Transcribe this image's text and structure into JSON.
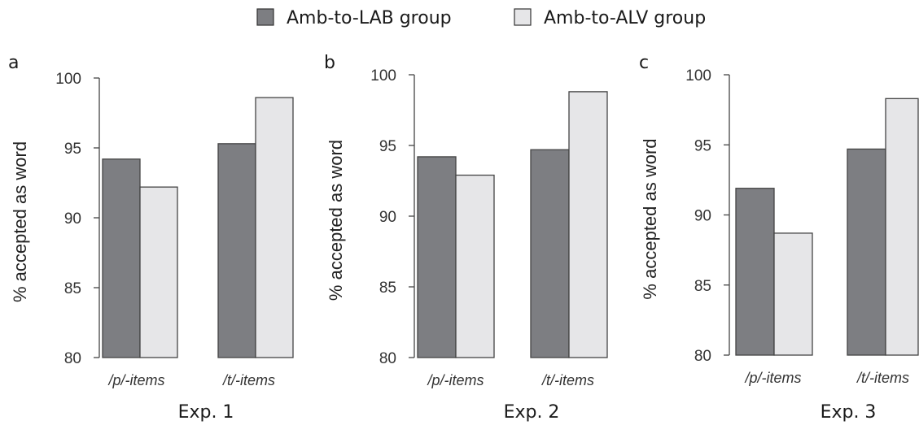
{
  "legend": {
    "items": [
      {
        "label": "Amb-to-LAB group",
        "color": "#7d7e82"
      },
      {
        "label": "Amb-to-ALV group",
        "color": "#e6e6e8"
      }
    ]
  },
  "chart_data": [
    {
      "type": "bar",
      "panel": "a",
      "title": "Exp. 1",
      "ylabel": "% accepted as word",
      "ylim": [
        80,
        100
      ],
      "yticks": [
        "80",
        "85",
        "90",
        "95",
        "100"
      ],
      "categories": [
        "/p/-items",
        "/t/-items"
      ],
      "series": [
        {
          "name": "Amb-to-LAB group",
          "values": [
            94.2,
            95.3
          ]
        },
        {
          "name": "Amb-to-ALV group",
          "values": [
            92.2,
            98.6
          ]
        }
      ]
    },
    {
      "type": "bar",
      "panel": "b",
      "title": "Exp. 2",
      "ylabel": "% accepted as word",
      "ylim": [
        80,
        100
      ],
      "yticks": [
        "80",
        "85",
        "90",
        "95",
        "100"
      ],
      "categories": [
        "/p/-items",
        "/t/-items"
      ],
      "series": [
        {
          "name": "Amb-to-LAB group",
          "values": [
            94.2,
            94.7
          ]
        },
        {
          "name": "Amb-to-ALV group",
          "values": [
            92.9,
            98.8
          ]
        }
      ]
    },
    {
      "type": "bar",
      "panel": "c",
      "title": "Exp. 3",
      "ylabel": "% accepted as word",
      "ylim": [
        80,
        100
      ],
      "yticks": [
        "80",
        "85",
        "90",
        "95",
        "100"
      ],
      "categories": [
        "/p/-items",
        "/t/-items"
      ],
      "series": [
        {
          "name": "Amb-to-LAB group",
          "values": [
            91.9,
            94.7
          ]
        },
        {
          "name": "Amb-to-ALV group",
          "values": [
            88.7,
            98.3
          ]
        }
      ]
    }
  ]
}
